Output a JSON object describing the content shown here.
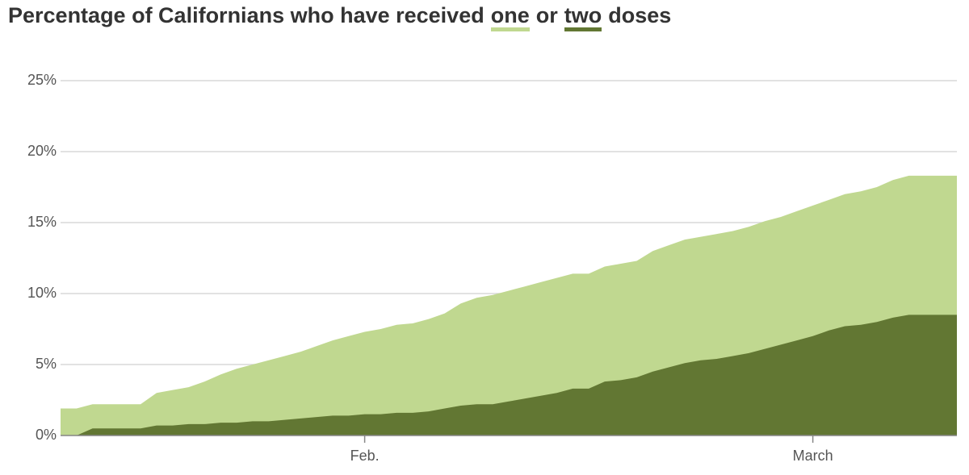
{
  "chart_data": {
    "type": "area",
    "title": [
      "Percentage of Californians who have received",
      "or",
      "doses"
    ],
    "categories": [
      null,
      null,
      null,
      null,
      null,
      null,
      null,
      null,
      null,
      null,
      null,
      null,
      null,
      null,
      null,
      null,
      null,
      null,
      null,
      "Feb.",
      null,
      null,
      null,
      null,
      null,
      null,
      null,
      null,
      null,
      null,
      null,
      null,
      null,
      null,
      null,
      null,
      null,
      null,
      null,
      null,
      null,
      null,
      null,
      null,
      null,
      null,
      null,
      "March",
      null,
      null,
      null,
      null,
      null,
      null,
      null,
      null,
      null
    ],
    "series": [
      {
        "name": "one",
        "color": "#c0d890",
        "values": [
          1.9,
          1.9,
          2.2,
          2.2,
          2.2,
          2.2,
          3.0,
          3.2,
          3.4,
          3.8,
          4.3,
          4.7,
          5.0,
          5.3,
          5.6,
          5.9,
          6.3,
          6.7,
          7.0,
          7.3,
          7.5,
          7.8,
          7.9,
          8.2,
          8.6,
          9.3,
          9.7,
          9.9,
          10.2,
          10.5,
          10.8,
          11.1,
          11.4,
          11.4,
          11.9,
          12.1,
          12.3,
          13.0,
          13.4,
          13.8,
          14.0,
          14.2,
          14.4,
          14.7,
          15.1,
          15.4,
          15.8,
          16.2,
          16.6,
          17.0,
          17.2,
          17.5,
          18.0,
          18.3,
          18.3,
          18.3,
          18.3
        ]
      },
      {
        "name": "two",
        "color": "#627733",
        "values": [
          0,
          0,
          0.5,
          0.5,
          0.5,
          0.5,
          0.7,
          0.7,
          0.8,
          0.8,
          0.9,
          0.9,
          1.0,
          1.0,
          1.1,
          1.2,
          1.3,
          1.4,
          1.4,
          1.5,
          1.5,
          1.6,
          1.6,
          1.7,
          1.9,
          2.1,
          2.2,
          2.2,
          2.4,
          2.6,
          2.8,
          3.0,
          3.3,
          3.3,
          3.8,
          3.9,
          4.1,
          4.5,
          4.8,
          5.1,
          5.3,
          5.4,
          5.6,
          5.8,
          6.1,
          6.4,
          6.7,
          7.0,
          7.4,
          7.7,
          7.8,
          8.0,
          8.3,
          8.5,
          8.5,
          8.5,
          8.5
        ]
      }
    ],
    "ylim": [
      0,
      25
    ],
    "yticks": [
      {
        "value": 0,
        "label": "0%"
      },
      {
        "value": 5,
        "label": "5%"
      },
      {
        "value": 10,
        "label": "10%"
      },
      {
        "value": 15,
        "label": "15%"
      },
      {
        "value": 20,
        "label": "20%"
      },
      {
        "value": 25,
        "label": "25%"
      }
    ],
    "grid": true
  }
}
